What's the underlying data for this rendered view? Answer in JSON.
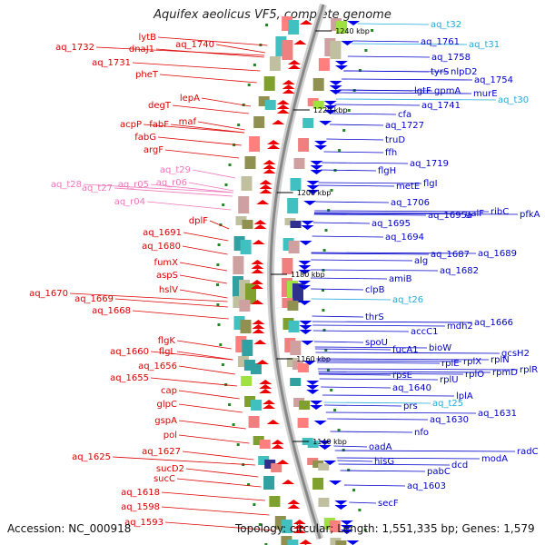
{
  "title": "Aquifex aeolicus VF5, complete genome",
  "footer": {
    "accession": "Accession: NC_000918",
    "topology": "Topology: circular; Length: 1,551,335 bp; Genes: 1,579"
  },
  "colors": {
    "forward_gene_label": "#dd0000",
    "reverse_gene_label": "#0000cc",
    "forward_rna_label": "#ee77bb",
    "reverse_rna_label": "#22aadd",
    "forward_arrow": "#ee0000",
    "reverse_arrow": "#0000ee",
    "backbone": "#888888",
    "tick": "#228822"
  },
  "positions_kbp": [
    "1240 kbp",
    "1220 kbp",
    "1200 kbp",
    "1180 kbp",
    "1160 kbp",
    "1140 kbp"
  ],
  "left_labels": [
    {
      "text": "lytB",
      "type": "gene"
    },
    {
      "text": "aq_1740",
      "type": "gene"
    },
    {
      "text": "aq_1732",
      "type": "gene"
    },
    {
      "text": "dnaJ1",
      "type": "gene"
    },
    {
      "text": "aq_1731",
      "type": "gene"
    },
    {
      "text": "pheT",
      "type": "gene"
    },
    {
      "text": "lepA",
      "type": "gene"
    },
    {
      "text": "degT",
      "type": "gene"
    },
    {
      "text": "maf",
      "type": "gene"
    },
    {
      "text": "acpP",
      "type": "gene"
    },
    {
      "text": "fabF",
      "type": "gene"
    },
    {
      "text": "fabG",
      "type": "gene"
    },
    {
      "text": "argF",
      "type": "gene"
    },
    {
      "text": "aq_t29",
      "type": "rna"
    },
    {
      "text": "aq_t28",
      "type": "rna"
    },
    {
      "text": "aq_t27",
      "type": "rna"
    },
    {
      "text": "aq_r05",
      "type": "rna"
    },
    {
      "text": "aq_r06",
      "type": "rna"
    },
    {
      "text": "aq_r04",
      "type": "rna"
    },
    {
      "text": "dplF",
      "type": "gene"
    },
    {
      "text": "aq_1691",
      "type": "gene"
    },
    {
      "text": "aq_1680",
      "type": "gene"
    },
    {
      "text": "fumX",
      "type": "gene"
    },
    {
      "text": "aspS",
      "type": "gene"
    },
    {
      "text": "hslV",
      "type": "gene"
    },
    {
      "text": "aq_1670",
      "type": "gene"
    },
    {
      "text": "aq_1669",
      "type": "gene"
    },
    {
      "text": "aq_1668",
      "type": "gene"
    },
    {
      "text": "flgL",
      "type": "gene"
    },
    {
      "text": "flgK",
      "type": "gene"
    },
    {
      "text": "aq_1660",
      "type": "gene"
    },
    {
      "text": "aq_1656",
      "type": "gene"
    },
    {
      "text": "aq_1655",
      "type": "gene"
    },
    {
      "text": "cap",
      "type": "gene"
    },
    {
      "text": "glpC",
      "type": "gene"
    },
    {
      "text": "gspA",
      "type": "gene"
    },
    {
      "text": "pol",
      "type": "gene"
    },
    {
      "text": "aq_1627",
      "type": "gene"
    },
    {
      "text": "aq_1625",
      "type": "gene"
    },
    {
      "text": "sucD2",
      "type": "gene"
    },
    {
      "text": "sucC",
      "type": "gene"
    },
    {
      "text": "aq_1618",
      "type": "gene"
    },
    {
      "text": "aq_1598",
      "type": "gene"
    },
    {
      "text": "aq_1593",
      "type": "gene"
    }
  ],
  "right_labels": [
    {
      "text": "aq_t32",
      "type": "rna"
    },
    {
      "text": "aq_1761",
      "type": "gene"
    },
    {
      "text": "aq_t31",
      "type": "rna"
    },
    {
      "text": "aq_1758",
      "type": "gene"
    },
    {
      "text": "tyrS",
      "type": "gene"
    },
    {
      "text": "nlpD2",
      "type": "gene"
    },
    {
      "text": "aq_1754",
      "type": "gene"
    },
    {
      "text": "lgtF",
      "type": "gene"
    },
    {
      "text": "gpmA",
      "type": "gene"
    },
    {
      "text": "murE",
      "type": "gene"
    },
    {
      "text": "aq_1741",
      "type": "gene"
    },
    {
      "text": "aq_t30",
      "type": "rna"
    },
    {
      "text": "cfa",
      "type": "gene"
    },
    {
      "text": "aq_1727",
      "type": "gene"
    },
    {
      "text": "truD",
      "type": "gene"
    },
    {
      "text": "ffh",
      "type": "gene"
    },
    {
      "text": "aq_1719",
      "type": "gene"
    },
    {
      "text": "flgH",
      "type": "gene"
    },
    {
      "text": "metE",
      "type": "gene"
    },
    {
      "text": "flgI",
      "type": "gene"
    },
    {
      "text": "aq_1706",
      "type": "gene"
    },
    {
      "text": "aq_1695a",
      "type": "gene"
    },
    {
      "text": "galF",
      "type": "gene"
    },
    {
      "text": "ribC",
      "type": "gene"
    },
    {
      "text": "pfkA",
      "type": "gene"
    },
    {
      "text": "aq_1695",
      "type": "gene"
    },
    {
      "text": "aq_1694",
      "type": "gene"
    },
    {
      "text": "aq_1687",
      "type": "gene"
    },
    {
      "text": "aq_1689",
      "type": "gene"
    },
    {
      "text": "alg",
      "type": "gene"
    },
    {
      "text": "aq_1682",
      "type": "gene"
    },
    {
      "text": "amiB",
      "type": "gene"
    },
    {
      "text": "clpB",
      "type": "gene"
    },
    {
      "text": "aq_t26",
      "type": "rna"
    },
    {
      "text": "thrS",
      "type": "gene"
    },
    {
      "text": "mdh2",
      "type": "gene"
    },
    {
      "text": "aq_1666",
      "type": "gene"
    },
    {
      "text": "accC1",
      "type": "gene"
    },
    {
      "text": "spoU",
      "type": "gene"
    },
    {
      "text": "fucA1",
      "type": "gene"
    },
    {
      "text": "bioW",
      "type": "gene"
    },
    {
      "text": "gcsH2",
      "type": "gene"
    },
    {
      "text": "rplN",
      "type": "gene"
    },
    {
      "text": "rplX",
      "type": "gene"
    },
    {
      "text": "rplE",
      "type": "gene"
    },
    {
      "text": "rplR",
      "type": "gene"
    },
    {
      "text": "rpsE",
      "type": "gene"
    },
    {
      "text": "rplU",
      "type": "gene"
    },
    {
      "text": "rplO",
      "type": "gene"
    },
    {
      "text": "rpmD",
      "type": "gene"
    },
    {
      "text": "aq_1640",
      "type": "gene"
    },
    {
      "text": "lplA",
      "type": "gene"
    },
    {
      "text": "prs",
      "type": "gene"
    },
    {
      "text": "aq_t25",
      "type": "rna"
    },
    {
      "text": "aq_1631",
      "type": "gene"
    },
    {
      "text": "aq_1630",
      "type": "gene"
    },
    {
      "text": "nfo",
      "type": "gene"
    },
    {
      "text": "oadA",
      "type": "gene"
    },
    {
      "text": "radC",
      "type": "gene"
    },
    {
      "text": "modA",
      "type": "gene"
    },
    {
      "text": "hisG",
      "type": "gene"
    },
    {
      "text": "dcd",
      "type": "gene"
    },
    {
      "text": "pabC",
      "type": "gene"
    },
    {
      "text": "aq_1603",
      "type": "gene"
    },
    {
      "text": "secF",
      "type": "gene"
    }
  ]
}
